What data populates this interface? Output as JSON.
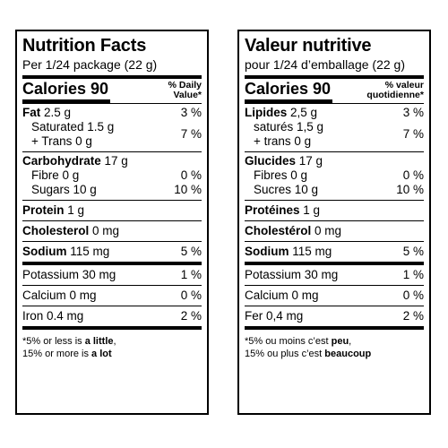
{
  "en": {
    "title": "Nutrition Facts",
    "serving": "Per 1/24 package (22 g)",
    "calories": "Calories 90",
    "dv_line1": "% Daily",
    "dv_line2": "Value*",
    "fat_label": "Fat",
    "fat_amount": " 2.5 g",
    "fat_dv": "3 %",
    "saturated": "Saturated 1.5 g",
    "trans": "+ Trans 0 g",
    "sat_trans_dv": "7 %",
    "carb_label": "Carbohydrate",
    "carb_amount": " 17 g",
    "fibre": "Fibre 0 g",
    "fibre_dv": "0 %",
    "sugars": "Sugars 10 g",
    "sugars_dv": "10 %",
    "protein_label": "Protein",
    "protein_amount": " 1 g",
    "chol_label": "Cholesterol",
    "chol_amount": " 0 mg",
    "sodium_label": "Sodium",
    "sodium_amount": " 115 mg",
    "sodium_dv": "5 %",
    "potassium": "Potassium 30 mg",
    "potassium_dv": "1 %",
    "calcium": "Calcium 0 mg",
    "calcium_dv": "0 %",
    "iron": "Iron 0.4 mg",
    "iron_dv": "2 %",
    "foot1_a": "*5% or less is ",
    "foot1_b": "a little",
    "foot1_c": ",",
    "foot2_a": "15% or more is ",
    "foot2_b": "a lot"
  },
  "fr": {
    "title": "Valeur nutritive",
    "serving": "pour 1/24 d’emballage (22 g)",
    "calories": "Calories 90",
    "dv_line1": "% valeur",
    "dv_line2": "quotidienne*",
    "fat_label": "Lipides",
    "fat_amount": " 2,5 g",
    "fat_dv": "3 %",
    "saturated": "saturés 1,5 g",
    "trans": "+ trans 0 g",
    "sat_trans_dv": "7 %",
    "carb_label": "Glucides",
    "carb_amount": " 17 g",
    "fibre": "Fibres 0 g",
    "fibre_dv": "0 %",
    "sugars": "Sucres 10 g",
    "sugars_dv": "10 %",
    "protein_label": "Protéines",
    "protein_amount": " 1 g",
    "chol_label": "Cholestérol",
    "chol_amount": " 0 mg",
    "sodium_label": "Sodium",
    "sodium_amount": " 115 mg",
    "sodium_dv": "5 %",
    "potassium": "Potassium 30 mg",
    "potassium_dv": "1 %",
    "calcium": "Calcium 0 mg",
    "calcium_dv": "0 %",
    "iron": "Fer 0,4 mg",
    "iron_dv": "2 %",
    "foot1_a": "*5% ou moins c’est ",
    "foot1_b": "peu",
    "foot1_c": ",",
    "foot2_a": "15% ou plus c’est ",
    "foot2_b": "beaucoup"
  }
}
